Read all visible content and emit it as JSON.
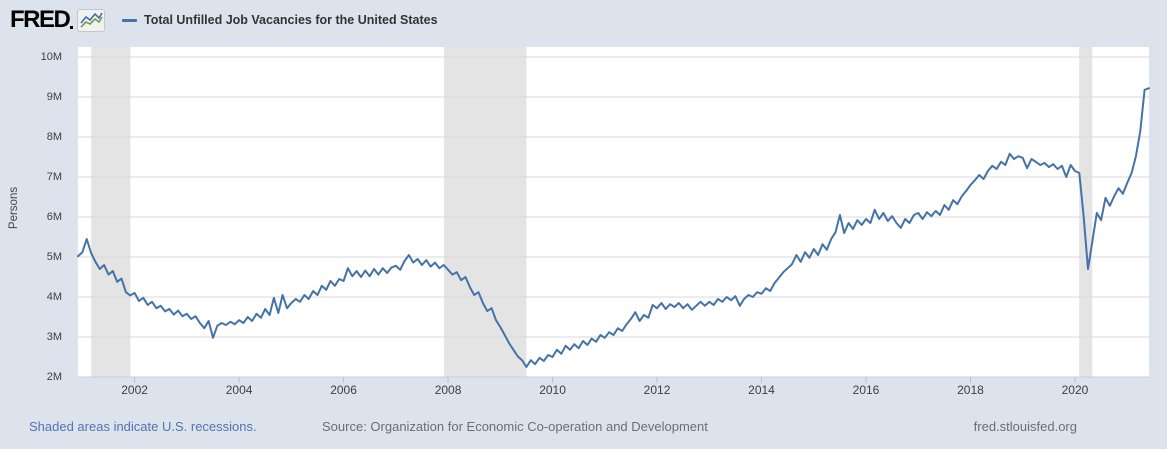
{
  "header": {
    "logo_text": "FRED",
    "legend": {
      "series_label": "Total Unfilled Job Vacancies for the United States"
    }
  },
  "footer": {
    "recession_note": "Shaded areas indicate U.S. recessions.",
    "source": "Source: Organization for Economic Co-operation and Development",
    "site": "fred.stlouisfed.org"
  },
  "chart_data": {
    "type": "line",
    "title": "Total Unfilled Job Vacancies for the United States",
    "ylabel": "Persons",
    "y_ticks": [
      "10M",
      "9M",
      "8M",
      "7M",
      "6M",
      "5M",
      "4M",
      "3M",
      "2M"
    ],
    "y_tick_values": [
      10,
      9,
      8,
      7,
      6,
      5,
      4,
      3,
      2
    ],
    "ylim": [
      2,
      10.25
    ],
    "x_ticks": [
      2002,
      2004,
      2006,
      2008,
      2010,
      2012,
      2014,
      2016,
      2018,
      2020
    ],
    "x_start": 2000.9167,
    "x_end": 2021.4167,
    "frequency": "monthly",
    "series_start": "2000-12",
    "series_end": "2021-06",
    "grid": "horizontal",
    "legend_position": "top",
    "recessions": [
      {
        "start": 2001.17,
        "end": 2001.92
      },
      {
        "start": 2007.92,
        "end": 2009.5
      },
      {
        "start": 2020.08,
        "end": 2020.33
      }
    ],
    "values_millions": [
      5.02,
      5.12,
      5.45,
      5.1,
      4.88,
      4.7,
      4.8,
      4.56,
      4.65,
      4.38,
      4.46,
      4.12,
      4.04,
      4.1,
      3.9,
      3.98,
      3.8,
      3.88,
      3.72,
      3.78,
      3.64,
      3.7,
      3.56,
      3.66,
      3.52,
      3.58,
      3.45,
      3.52,
      3.35,
      3.22,
      3.4,
      2.98,
      3.28,
      3.35,
      3.3,
      3.38,
      3.32,
      3.42,
      3.35,
      3.5,
      3.4,
      3.58,
      3.48,
      3.7,
      3.55,
      3.98,
      3.6,
      4.05,
      3.72,
      3.85,
      3.95,
      3.88,
      4.05,
      3.95,
      4.15,
      4.05,
      4.28,
      4.18,
      4.4,
      4.28,
      4.45,
      4.4,
      4.72,
      4.52,
      4.65,
      4.5,
      4.66,
      4.52,
      4.7,
      4.56,
      4.72,
      4.6,
      4.74,
      4.78,
      4.68,
      4.9,
      5.05,
      4.86,
      4.95,
      4.8,
      4.92,
      4.76,
      4.86,
      4.72,
      4.8,
      4.68,
      4.56,
      4.62,
      4.42,
      4.5,
      4.25,
      4.05,
      4.12,
      3.85,
      3.65,
      3.72,
      3.42,
      3.25,
      3.05,
      2.85,
      2.68,
      2.52,
      2.42,
      2.25,
      2.42,
      2.32,
      2.48,
      2.4,
      2.55,
      2.5,
      2.68,
      2.58,
      2.78,
      2.68,
      2.82,
      2.72,
      2.9,
      2.8,
      2.96,
      2.88,
      3.05,
      2.98,
      3.12,
      3.05,
      3.22,
      3.15,
      3.32,
      3.45,
      3.62,
      3.4,
      3.55,
      3.48,
      3.8,
      3.72,
      3.85,
      3.7,
      3.82,
      3.75,
      3.85,
      3.72,
      3.82,
      3.68,
      3.78,
      3.88,
      3.78,
      3.88,
      3.8,
      3.95,
      3.88,
      4.0,
      3.92,
      4.02,
      3.78,
      3.95,
      4.05,
      4.0,
      4.12,
      4.08,
      4.22,
      4.15,
      4.35,
      4.48,
      4.62,
      4.72,
      4.82,
      5.05,
      4.88,
      5.12,
      4.98,
      5.2,
      5.05,
      5.32,
      5.18,
      5.45,
      5.62,
      6.05,
      5.6,
      5.85,
      5.7,
      5.92,
      5.8,
      5.95,
      5.85,
      6.18,
      5.95,
      6.1,
      5.9,
      6.02,
      5.85,
      5.73,
      5.95,
      5.85,
      6.05,
      6.1,
      5.95,
      6.12,
      6.02,
      6.15,
      6.05,
      6.3,
      6.18,
      6.42,
      6.32,
      6.52,
      6.65,
      6.8,
      6.92,
      7.05,
      6.95,
      7.15,
      7.28,
      7.2,
      7.38,
      7.3,
      7.58,
      7.45,
      7.52,
      7.48,
      7.22,
      7.45,
      7.38,
      7.3,
      7.35,
      7.25,
      7.32,
      7.2,
      7.28,
      7.0,
      7.3,
      7.15,
      7.1,
      6.0,
      4.7,
      5.4,
      6.1,
      5.92,
      6.48,
      6.28,
      6.52,
      6.72,
      6.58,
      6.85,
      7.1,
      7.52,
      8.15,
      9.18,
      9.22
    ],
    "colors": {
      "line": "#4572a7",
      "recession": "#e4e4e4",
      "background": "#dce3ed",
      "plot": "#ffffff",
      "gridline": "#d9d9d9",
      "axis_line": "#c9cfdb",
      "tick": "#b8c2d2",
      "label": "#3f3f3f",
      "link": "#4f74b3",
      "footer_text": "#6e6e6e",
      "logo_blue": "#3e6da8",
      "logo_green": "#6f9e4f"
    }
  }
}
